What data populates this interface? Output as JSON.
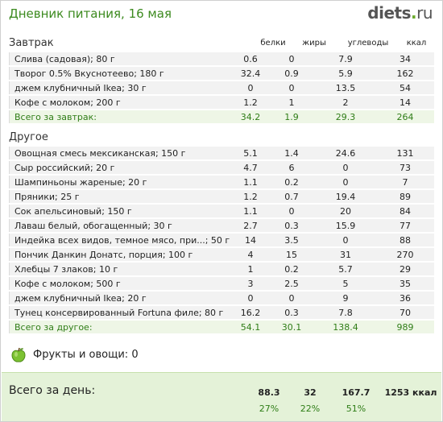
{
  "header": {
    "title": "Дневник питания, 16 мая",
    "logo_main": "diets",
    "logo_dot": ".",
    "logo_tld": "ru"
  },
  "columns": {
    "protein": "белки",
    "fat": "жиры",
    "carbs": "углеводы",
    "kcal": "ккал"
  },
  "breakfast": {
    "title": "Завтрак",
    "items": [
      {
        "name": "Слива (садовая); 80 г",
        "protein": "0.6",
        "fat": "0",
        "carbs": "7.9",
        "kcal": "34"
      },
      {
        "name": "Творог 0.5% Вкуснотеево; 180 г",
        "protein": "32.4",
        "fat": "0.9",
        "carbs": "5.9",
        "kcal": "162"
      },
      {
        "name": "джем клубничный Ikea; 30 г",
        "protein": "0",
        "fat": "0",
        "carbs": "13.5",
        "kcal": "54"
      },
      {
        "name": "Кофе с молоком; 200 г",
        "protein": "1.2",
        "fat": "1",
        "carbs": "2",
        "kcal": "14"
      }
    ],
    "total": {
      "label": "Всего за завтрак:",
      "protein": "34.2",
      "fat": "1.9",
      "carbs": "29.3",
      "kcal": "264"
    }
  },
  "other": {
    "title": "Другое",
    "items": [
      {
        "name": "Овощная смесь мексиканская; 150 г",
        "protein": "5.1",
        "fat": "1.4",
        "carbs": "24.6",
        "kcal": "131"
      },
      {
        "name": "Сыр российский; 20 г",
        "protein": "4.7",
        "fat": "6",
        "carbs": "0",
        "kcal": "73"
      },
      {
        "name": "Шампиньоны жареные; 20 г",
        "protein": "1.1",
        "fat": "0.2",
        "carbs": "0",
        "kcal": "7"
      },
      {
        "name": "Пряники; 25 г",
        "protein": "1.2",
        "fat": "0.7",
        "carbs": "19.4",
        "kcal": "89"
      },
      {
        "name": "Сок апельсиновый; 150 г",
        "protein": "1.1",
        "fat": "0",
        "carbs": "20",
        "kcal": "84"
      },
      {
        "name": "Лаваш белый, обогащенный; 30 г",
        "protein": "2.7",
        "fat": "0.3",
        "carbs": "15.9",
        "kcal": "77"
      },
      {
        "name": "Индейка всех видов, темное мясо, при...; 50 г",
        "protein": "14",
        "fat": "3.5",
        "carbs": "0",
        "kcal": "88"
      },
      {
        "name": "Пончик Данкин Донатс, порция; 100 г",
        "protein": "4",
        "fat": "15",
        "carbs": "31",
        "kcal": "270"
      },
      {
        "name": "Хлебцы 7 злаков; 10 г",
        "protein": "1",
        "fat": "0.2",
        "carbs": "5.7",
        "kcal": "29"
      },
      {
        "name": "Кофе с молоком; 500 г",
        "protein": "3",
        "fat": "2.5",
        "carbs": "5",
        "kcal": "35"
      },
      {
        "name": "джем клубничный Ikea; 20 г",
        "protein": "0",
        "fat": "0",
        "carbs": "9",
        "kcal": "36"
      },
      {
        "name": "Тунец консервированный Fortuna филе; 80 г",
        "protein": "16.2",
        "fat": "0.3",
        "carbs": "7.8",
        "kcal": "70"
      }
    ],
    "total": {
      "label": "Всего за другое:",
      "protein": "54.1",
      "fat": "30.1",
      "carbs": "138.4",
      "kcal": "989"
    }
  },
  "fruits": {
    "icon": "apple-icon",
    "label": "Фрукты и овощи: 0"
  },
  "day": {
    "label": "Всего за день:",
    "protein": "88.3",
    "fat": "32",
    "carbs": "167.7",
    "kcal": "1253 ккал",
    "protein_pct": "27%",
    "fat_pct": "22%",
    "carbs_pct": "51%"
  },
  "colors": {
    "accent": "#3c8a1f",
    "total_bg": "#eef6e6",
    "day_bg": "#e4f2d8",
    "row_bg": "#f2f2f2"
  }
}
